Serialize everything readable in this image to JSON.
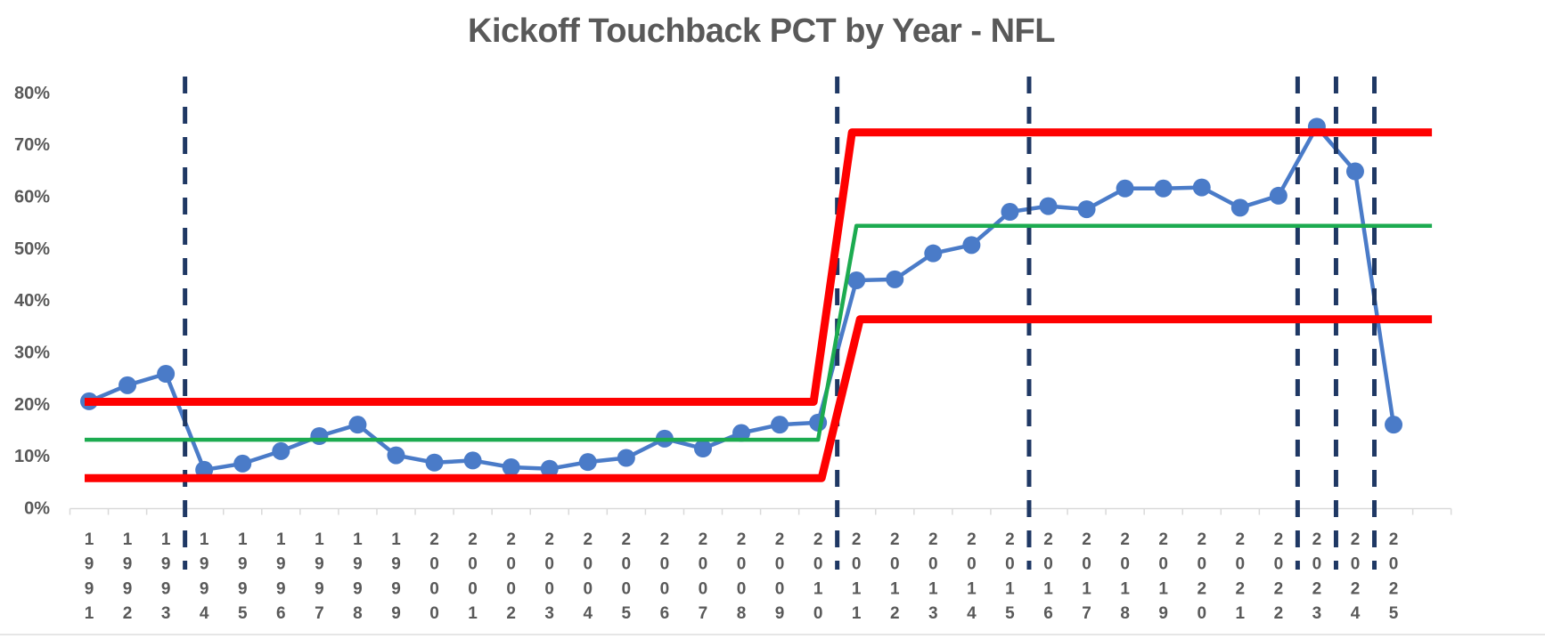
{
  "page": {
    "background": "#ffffff"
  },
  "chart_data": {
    "type": "line",
    "title": "Kickoff Touchback PCT by Year - NFL",
    "categories": [
      "1991",
      "1992",
      "1993",
      "1994",
      "1995",
      "1996",
      "1997",
      "1998",
      "1999",
      "2000",
      "2001",
      "2002",
      "2003",
      "2004",
      "2005",
      "2006",
      "2007",
      "2008",
      "2009",
      "2010",
      "2011",
      "2012",
      "2013",
      "2014",
      "2015",
      "2016",
      "2017",
      "2018",
      "2019",
      "2020",
      "2021",
      "2022",
      "2023",
      "2024",
      "2025"
    ],
    "series": [
      {
        "name": "Kickoff Touchback PCT",
        "color": "#4a7bc8",
        "values": [
          20.5,
          23.6,
          25.8,
          7.3,
          8.5,
          10.9,
          13.8,
          16.0,
          10.1,
          8.7,
          9.1,
          7.8,
          7.5,
          8.8,
          9.6,
          13.3,
          11.4,
          14.4,
          16.0,
          16.4,
          43.8,
          44.0,
          49.0,
          50.6,
          57.0,
          58.1,
          57.5,
          61.5,
          61.5,
          61.7,
          57.8,
          60.1,
          73.4,
          64.8,
          16.0
        ]
      }
    ],
    "reference_lines": {
      "upper_limit": {
        "color": "#fe0000",
        "pre_value": 20.4,
        "post_value": 72.3
      },
      "mean": {
        "color": "#1cab50",
        "pre_value": 13.1,
        "post_value": 54.3
      },
      "lower_limit": {
        "color": "#fe0000",
        "pre_value": 5.7,
        "post_value": 36.3
      },
      "step_between": [
        "2010",
        "2011"
      ]
    },
    "rule_change_markers": {
      "style": "vertical-dashed",
      "color": "#1f3864",
      "between_years": [
        [
          "1993",
          "1994"
        ],
        [
          "2010",
          "2011"
        ],
        [
          "2015",
          "2016"
        ],
        [
          "2022",
          "2023"
        ],
        [
          "2023",
          "2024"
        ],
        [
          "2024",
          "2025"
        ]
      ]
    },
    "y_axis": {
      "min": 0,
      "max": 80,
      "tick_step": 10,
      "unit": "%",
      "tick_labels": [
        "0%",
        "10%",
        "20%",
        "30%",
        "40%",
        "50%",
        "60%",
        "70%",
        "80%"
      ]
    },
    "x_axis": {
      "label_orientation": "stacked-digits"
    },
    "grid": false,
    "legend": false,
    "text_color": "#595959",
    "axis_color": "#d9d9d9"
  }
}
